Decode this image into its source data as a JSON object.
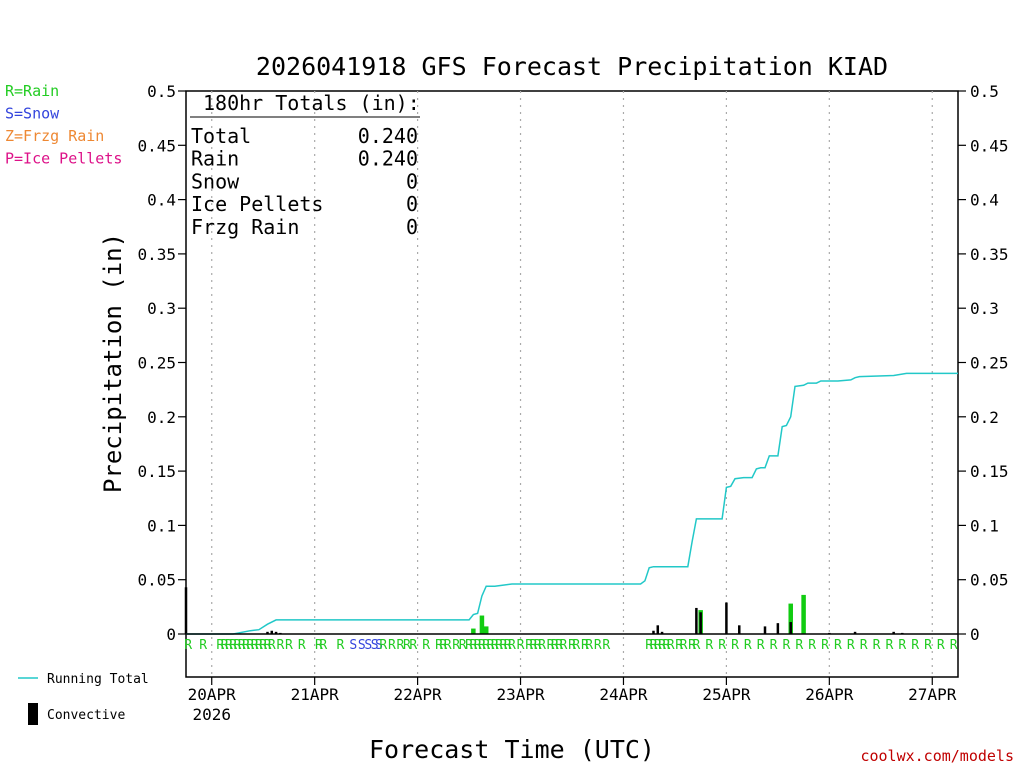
{
  "chart_data": {
    "type": "bar",
    "title": "2026041918 GFS Forecast Precipitation KIAD",
    "xlabel": "Forecast Time (UTC)",
    "ylabel": "Precipitation (in)",
    "ylim": [
      0,
      0.5
    ],
    "y_ticks": [
      0,
      0.05,
      0.1,
      0.15,
      0.2,
      0.25,
      0.3,
      0.35,
      0.4,
      0.45,
      0.5
    ],
    "y_tick_labels": [
      "0",
      "0.05",
      "0.1",
      "0.15",
      "0.2",
      "0.25",
      "0.3",
      "0.35",
      "0.4",
      "0.45",
      "0.5"
    ],
    "x_unit": "hours from 2026-04-19 18Z",
    "xlim": [
      0,
      180
    ],
    "x_ticks": [
      {
        "hour": 6,
        "label": "20APR",
        "sublabel": "2026"
      },
      {
        "hour": 30,
        "label": "21APR"
      },
      {
        "hour": 54,
        "label": "22APR"
      },
      {
        "hour": 78,
        "label": "23APR"
      },
      {
        "hour": 102,
        "label": "24APR"
      },
      {
        "hour": 126,
        "label": "25APR"
      },
      {
        "hour": 150,
        "label": "26APR"
      },
      {
        "hour": 174,
        "label": "27APR"
      }
    ],
    "grid": true,
    "precip_type_legend": [
      {
        "label": "R=Rain",
        "color": "#22cc22"
      },
      {
        "label": "S=Snow",
        "color": "#3344dd"
      },
      {
        "label": "Z=Frzg Rain",
        "color": "#ee8833"
      },
      {
        "label": "P=Ice Pellets",
        "color": "#dd1188"
      }
    ],
    "totals_box": {
      "heading": "180hr Totals (in):",
      "rows": [
        {
          "label": "Total",
          "value": "0.240"
        },
        {
          "label": "Rain",
          "value": "0.240"
        },
        {
          "label": "Snow",
          "value": "0"
        },
        {
          "label": "Ice Pellets",
          "value": "0"
        },
        {
          "label": "Frzg Rain",
          "value": "0"
        }
      ]
    },
    "series": [
      {
        "name": "Running Total",
        "type": "line",
        "color": "#22c8c8",
        "points": [
          [
            0,
            0
          ],
          [
            3,
            0
          ],
          [
            11,
            0
          ],
          [
            15,
            0.003
          ],
          [
            17,
            0.004
          ],
          [
            19,
            0.009
          ],
          [
            21,
            0.013
          ],
          [
            35,
            0.013
          ],
          [
            66,
            0.013
          ],
          [
            67,
            0.018
          ],
          [
            68,
            0.019
          ],
          [
            69,
            0.035
          ],
          [
            70,
            0.044
          ],
          [
            72,
            0.044
          ],
          [
            74,
            0.045
          ],
          [
            76,
            0.046
          ],
          [
            106,
            0.046
          ],
          [
            107,
            0.049
          ],
          [
            108,
            0.061
          ],
          [
            109,
            0.062
          ],
          [
            117,
            0.062
          ],
          [
            118,
            0.085
          ],
          [
            119,
            0.106
          ],
          [
            121,
            0.106
          ],
          [
            125,
            0.106
          ],
          [
            126,
            0.135
          ],
          [
            127,
            0.136
          ],
          [
            128,
            0.143
          ],
          [
            130,
            0.144
          ],
          [
            132,
            0.144
          ],
          [
            133,
            0.152
          ],
          [
            134,
            0.153
          ],
          [
            135,
            0.153
          ],
          [
            136,
            0.164
          ],
          [
            138,
            0.164
          ],
          [
            139,
            0.191
          ],
          [
            140,
            0.192
          ],
          [
            141,
            0.2
          ],
          [
            142,
            0.228
          ],
          [
            144,
            0.229
          ],
          [
            145,
            0.231
          ],
          [
            147,
            0.231
          ],
          [
            148,
            0.233
          ],
          [
            152,
            0.233
          ],
          [
            155,
            0.234
          ],
          [
            156,
            0.236
          ],
          [
            157,
            0.237
          ],
          [
            165,
            0.238
          ],
          [
            168,
            0.24
          ],
          [
            180,
            0.24
          ]
        ]
      },
      {
        "name": "Rain",
        "type": "bar",
        "color": "#11cc11",
        "x": [
          67,
          69,
          70,
          120,
          141,
          144
        ],
        "values": [
          0.005,
          0.017,
          0.007,
          0.022,
          0.028,
          0.036
        ]
      },
      {
        "name": "Convective",
        "type": "bar",
        "color": "#000000",
        "x": [
          0,
          19,
          20,
          21,
          22,
          109,
          110,
          111,
          119,
          120,
          126,
          129,
          135,
          138,
          141,
          150,
          156,
          165,
          167
        ],
        "values": [
          0.043,
          0.002,
          0.003,
          0.002,
          0.001,
          0.003,
          0.008,
          0.002,
          0.024,
          0.02,
          0.029,
          0.008,
          0.007,
          0.01,
          0.011,
          0.001,
          0.002,
          0.002,
          0.001
        ]
      }
    ],
    "precip_type_markers": {
      "row_position": "below zero line",
      "labels": [
        {
          "hour": 0.5,
          "letter": "R"
        },
        {
          "hour": 4,
          "letter": "R"
        },
        {
          "hour": 8,
          "letter": "R"
        },
        {
          "hour": 9,
          "letter": "R"
        },
        {
          "hour": 10,
          "letter": "R"
        },
        {
          "hour": 11,
          "letter": "R"
        },
        {
          "hour": 12,
          "letter": "R"
        },
        {
          "hour": 13,
          "letter": "R"
        },
        {
          "hour": 14,
          "letter": "R"
        },
        {
          "hour": 15,
          "letter": "R"
        },
        {
          "hour": 16,
          "letter": "R"
        },
        {
          "hour": 17,
          "letter": "R"
        },
        {
          "hour": 18,
          "letter": "R"
        },
        {
          "hour": 19,
          "letter": "R"
        },
        {
          "hour": 20,
          "letter": "R"
        },
        {
          "hour": 22,
          "letter": "R"
        },
        {
          "hour": 24,
          "letter": "R"
        },
        {
          "hour": 27,
          "letter": "R"
        },
        {
          "hour": 31,
          "letter": "R"
        },
        {
          "hour": 32,
          "letter": "R"
        },
        {
          "hour": 36,
          "letter": "R"
        },
        {
          "hour": 39,
          "letter": "S"
        },
        {
          "hour": 41,
          "letter": "S"
        },
        {
          "hour": 42.5,
          "letter": "S"
        },
        {
          "hour": 44,
          "letter": "S"
        },
        {
          "hour": 45,
          "letter": "S"
        },
        {
          "hour": 46,
          "letter": "R"
        },
        {
          "hour": 48,
          "letter": "R"
        },
        {
          "hour": 50,
          "letter": "R"
        },
        {
          "hour": 51.5,
          "letter": "R"
        },
        {
          "hour": 53,
          "letter": "R"
        },
        {
          "hour": 56,
          "letter": "R"
        },
        {
          "hour": 59,
          "letter": "R"
        },
        {
          "hour": 60,
          "letter": "R"
        },
        {
          "hour": 61,
          "letter": "R"
        },
        {
          "hour": 63,
          "letter": "R"
        },
        {
          "hour": 64.5,
          "letter": "R"
        },
        {
          "hour": 66,
          "letter": "R"
        },
        {
          "hour": 67,
          "letter": "R"
        },
        {
          "hour": 68,
          "letter": "R"
        },
        {
          "hour": 69,
          "letter": "R"
        },
        {
          "hour": 70,
          "letter": "R"
        },
        {
          "hour": 71,
          "letter": "R"
        },
        {
          "hour": 72,
          "letter": "R"
        },
        {
          "hour": 73,
          "letter": "R"
        },
        {
          "hour": 74,
          "letter": "R"
        },
        {
          "hour": 75,
          "letter": "R"
        },
        {
          "hour": 76,
          "letter": "R"
        },
        {
          "hour": 78,
          "letter": "R"
        },
        {
          "hour": 80,
          "letter": "R"
        },
        {
          "hour": 81,
          "letter": "R"
        },
        {
          "hour": 82,
          "letter": "R"
        },
        {
          "hour": 83,
          "letter": "R"
        },
        {
          "hour": 85,
          "letter": "R"
        },
        {
          "hour": 86,
          "letter": "R"
        },
        {
          "hour": 87,
          "letter": "R"
        },
        {
          "hour": 88,
          "letter": "R"
        },
        {
          "hour": 90,
          "letter": "R"
        },
        {
          "hour": 91,
          "letter": "R"
        },
        {
          "hour": 93,
          "letter": "R"
        },
        {
          "hour": 94,
          "letter": "R"
        },
        {
          "hour": 96,
          "letter": "R"
        },
        {
          "hour": 98,
          "letter": "R"
        },
        {
          "hour": 108,
          "letter": "R"
        },
        {
          "hour": 109,
          "letter": "R"
        },
        {
          "hour": 110,
          "letter": "R"
        },
        {
          "hour": 111,
          "letter": "R"
        },
        {
          "hour": 112,
          "letter": "R"
        },
        {
          "hour": 113,
          "letter": "R"
        },
        {
          "hour": 115,
          "letter": "R"
        },
        {
          "hour": 116,
          "letter": "R"
        },
        {
          "hour": 118,
          "letter": "R"
        },
        {
          "hour": 119,
          "letter": "R"
        },
        {
          "hour": 122,
          "letter": "R"
        },
        {
          "hour": 125,
          "letter": "R"
        },
        {
          "hour": 128,
          "letter": "R"
        },
        {
          "hour": 131,
          "letter": "R"
        },
        {
          "hour": 134,
          "letter": "R"
        },
        {
          "hour": 137,
          "letter": "R"
        },
        {
          "hour": 140,
          "letter": "R"
        },
        {
          "hour": 143,
          "letter": "R"
        },
        {
          "hour": 146,
          "letter": "R"
        },
        {
          "hour": 149,
          "letter": "R"
        },
        {
          "hour": 152,
          "letter": "R"
        },
        {
          "hour": 155,
          "letter": "R"
        },
        {
          "hour": 158,
          "letter": "R"
        },
        {
          "hour": 161,
          "letter": "R"
        },
        {
          "hour": 164,
          "letter": "R"
        },
        {
          "hour": 167,
          "letter": "R"
        },
        {
          "hour": 170,
          "letter": "R"
        },
        {
          "hour": 173,
          "letter": "R"
        },
        {
          "hour": 176,
          "letter": "R"
        },
        {
          "hour": 179,
          "letter": "R"
        }
      ]
    },
    "bottom_legend": [
      {
        "label": "Running Total",
        "symbol": "line",
        "color": "#22c8c8"
      },
      {
        "label": "Convective",
        "symbol": "bar",
        "color": "#000000"
      }
    ],
    "credit": "coolwx.com/models"
  }
}
